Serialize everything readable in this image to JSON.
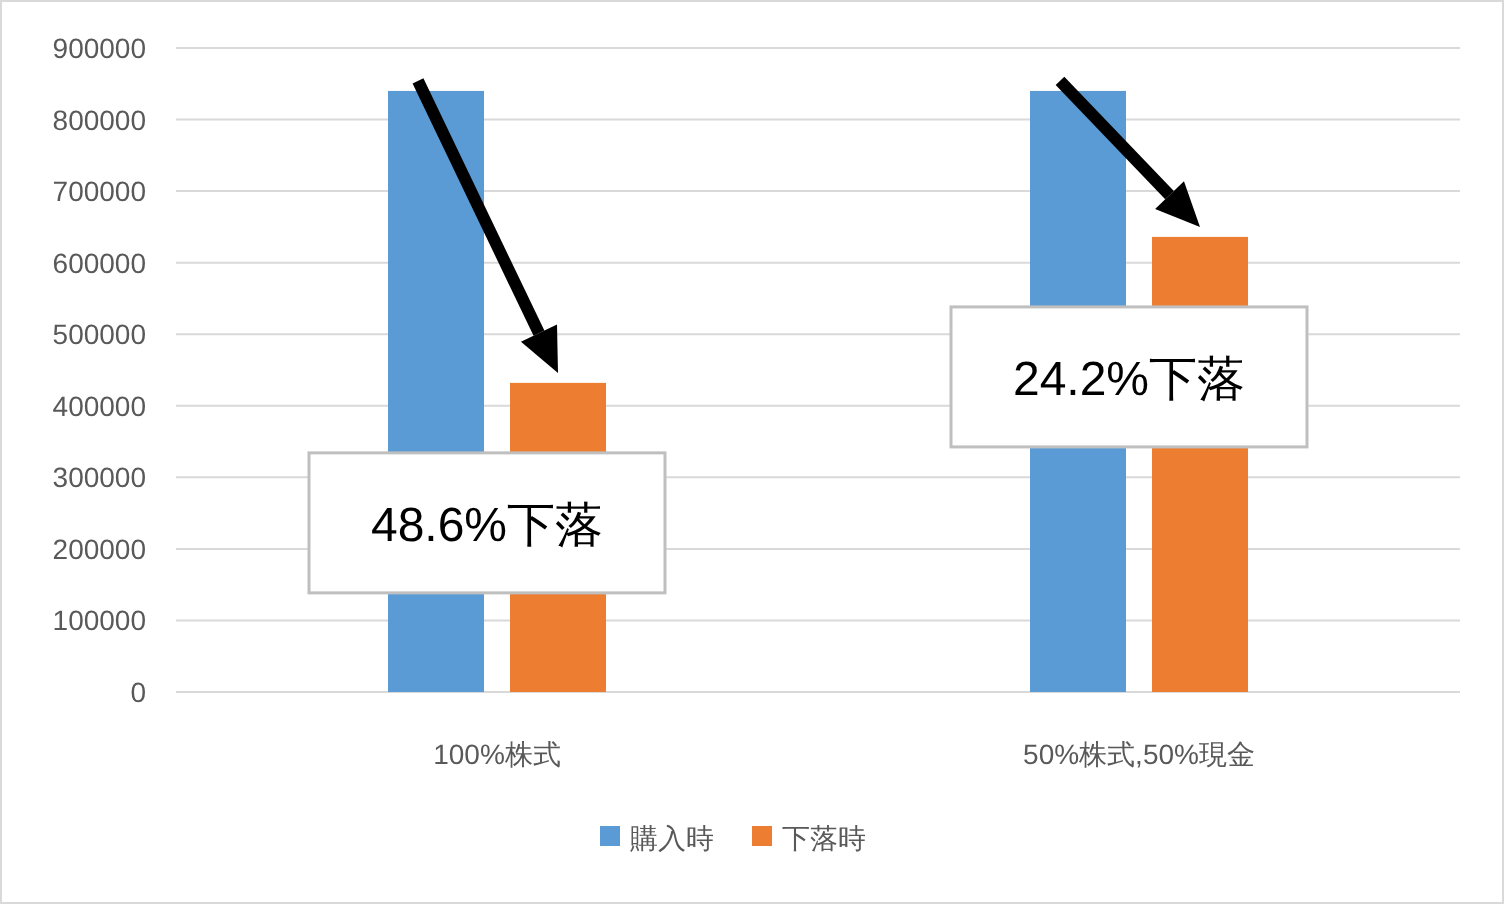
{
  "chart_data": {
    "type": "bar",
    "categories": [
      "100%株式",
      "50%株式,50%現金"
    ],
    "series": [
      {
        "name": "購入時",
        "color": "#5b9bd5",
        "values": [
          840000,
          840000
        ]
      },
      {
        "name": "下落時",
        "color": "#ed7d31",
        "values": [
          432000,
          636000
        ]
      }
    ],
    "ylim": [
      0,
      900000
    ],
    "yticks": [
      0,
      100000,
      200000,
      300000,
      400000,
      500000,
      600000,
      700000,
      800000,
      900000
    ],
    "grid": "y",
    "legend": "bottom",
    "annotations": [
      "48.6%下落",
      "24.2%下落"
    ]
  }
}
